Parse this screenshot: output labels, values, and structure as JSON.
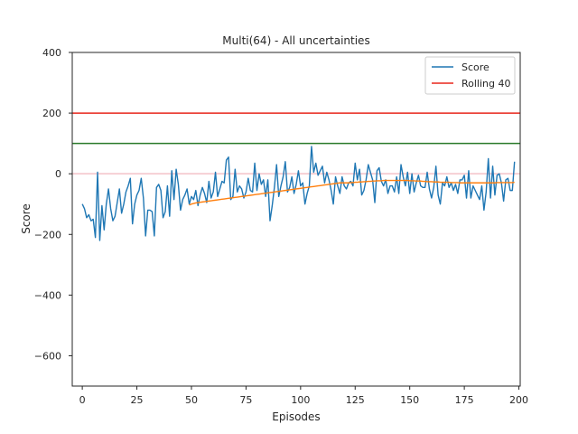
{
  "chart_data": {
    "type": "line",
    "title": "Multi(64) - All uncertainties",
    "xlabel": "Episodes",
    "ylabel": "Score",
    "xlim": [
      -4.6,
      200.6
    ],
    "ylim": [
      -700,
      400
    ],
    "xticks": [
      0,
      25,
      50,
      75,
      100,
      125,
      150,
      175,
      200
    ],
    "yticks": [
      400,
      200,
      0,
      -200,
      -400,
      -600
    ],
    "grid": false,
    "legend_position": "top-right",
    "legend": [
      {
        "label": "Score",
        "color": "#1f77b4"
      },
      {
        "label": "Rolling 40",
        "color": "#e8261c"
      }
    ],
    "hlines": [
      {
        "y": 200,
        "color": "#e8261c"
      },
      {
        "y": 100,
        "color": "#2a7a2a"
      },
      {
        "y": 0,
        "color": "#f4c2c8"
      }
    ],
    "series": [
      {
        "name": "Score",
        "color": "#1f77b4",
        "x_start": 0,
        "values": [
          -100,
          -115,
          -145,
          -135,
          -155,
          -150,
          -210,
          5,
          -220,
          -105,
          -185,
          -100,
          -50,
          -115,
          -155,
          -140,
          -95,
          -50,
          -130,
          -100,
          -60,
          -40,
          -15,
          -165,
          -100,
          -70,
          -55,
          -15,
          -80,
          -205,
          -120,
          -120,
          -125,
          -205,
          -45,
          -35,
          -55,
          -145,
          -125,
          -40,
          -140,
          10,
          -85,
          15,
          -35,
          -120,
          -85,
          -70,
          -50,
          -100,
          -75,
          -85,
          -55,
          -105,
          -70,
          -45,
          -65,
          -95,
          -25,
          -80,
          -60,
          5,
          -75,
          -50,
          -25,
          -30,
          45,
          55,
          -85,
          -75,
          15,
          -60,
          -40,
          -50,
          -80,
          -60,
          -15,
          -55,
          -60,
          35,
          -55,
          0,
          -35,
          -20,
          -75,
          -20,
          -155,
          -105,
          -45,
          30,
          -75,
          -40,
          -10,
          40,
          -60,
          -45,
          -10,
          -65,
          -35,
          10,
          -40,
          -30,
          -100,
          -65,
          -40,
          90,
          5,
          35,
          -5,
          10,
          25,
          -30,
          5,
          -20,
          -55,
          -100,
          -10,
          -40,
          -65,
          -10,
          -40,
          -50,
          -30,
          -25,
          -40,
          35,
          -20,
          15,
          -70,
          -55,
          -20,
          30,
          5,
          -20,
          -95,
          10,
          20,
          -25,
          -40,
          -20,
          -65,
          -40,
          -40,
          -60,
          -10,
          -65,
          30,
          -10,
          -40,
          5,
          -65,
          0,
          -60,
          -30,
          -5,
          -40,
          -45,
          -45,
          5,
          -50,
          -80,
          -45,
          25,
          -70,
          -100,
          -30,
          -40,
          -10,
          -45,
          -30,
          -55,
          -35,
          -65,
          -20,
          -20,
          -5,
          -80,
          10,
          -80,
          -40,
          -55,
          -70,
          -85,
          -40,
          -120,
          -60,
          50,
          -80,
          25,
          -70,
          -5,
          0,
          -30,
          -90,
          -20,
          -15,
          -55,
          -55,
          40
        ],
        "rolling": [
          -103,
          -100,
          -98,
          -96,
          -95,
          -94,
          -93,
          -92,
          -91,
          -90,
          -89,
          -88,
          -87,
          -86,
          -85,
          -84,
          -83,
          -82,
          -81,
          -80,
          -79,
          -78,
          -77,
          -76,
          -75,
          -74,
          -73,
          -72,
          -71,
          -70,
          -69,
          -68,
          -67,
          -66,
          -65,
          -64,
          -63,
          -62,
          -61,
          -60,
          -59,
          -58,
          -57,
          -56,
          -55,
          -54,
          -53,
          -52,
          -51,
          -50,
          -49,
          -48,
          -47,
          -46,
          -45,
          -44,
          -43,
          -42,
          -41,
          -40,
          -39,
          -38,
          -37,
          -36,
          -35,
          -34,
          -33,
          -32,
          -31,
          -30,
          -30,
          -30,
          -30,
          -30,
          -29,
          -29,
          -28,
          -28,
          -27,
          -27,
          -26,
          -26,
          -25,
          -25,
          -24,
          -24,
          -23,
          -23,
          -23,
          -22,
          -22,
          -22,
          -22,
          -22,
          -22,
          -22,
          -22,
          -22,
          -22,
          -22,
          -22,
          -23,
          -23,
          -23,
          -24,
          -24,
          -24,
          -25,
          -25,
          -26,
          -26,
          -26,
          -27,
          -27,
          -27,
          -28,
          -28,
          -28,
          -28,
          -28,
          -29,
          -29,
          -29,
          -29,
          -30,
          -30,
          -30,
          -30,
          -30,
          -30,
          -30,
          -30,
          -30,
          -30,
          -30,
          -30,
          -30,
          -30,
          -30,
          -30,
          -30,
          -29,
          -29,
          -29,
          -29,
          -29,
          -29,
          -29,
          -29,
          -28
        ]
      }
    ]
  }
}
